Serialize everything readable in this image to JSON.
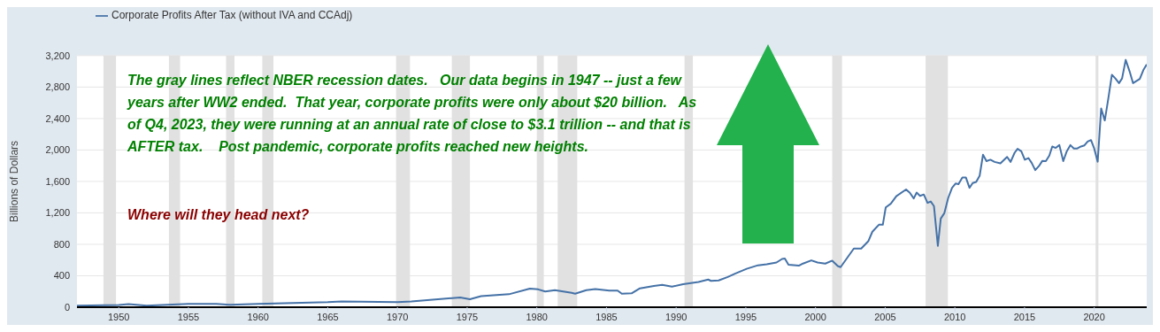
{
  "chart_data": {
    "type": "line",
    "ylabel": "Billions of Dollars",
    "annotations": [
      "The gray lines reflect NBER recession dates.   Our data begins in 1947 -- just a few years after WW2 ended.  That year, corporate profits were only about $20 billion.   As of Q4, 2023, they were running at an annual rate of close to $3.1 trillion -- and that is AFTER tax.    Post pandemic, corporate profits reached new heights.",
      "Where will they head next?"
    ],
    "series": [
      {
        "name": "Corporate Profits After Tax (without IVA and CCAdj)",
        "color": "#4572a7",
        "x": [
          1947,
          1950,
          1950.7,
          1952,
          1955,
          1957,
          1958,
          1960,
          1965,
          1966,
          1970,
          1971,
          1974.5,
          1975.2,
          1976,
          1978,
          1979.5,
          1980.1,
          1980.6,
          1981.3,
          1982.5,
          1982.75,
          1983.55,
          1984.2,
          1985.2,
          1985.8,
          1986.1,
          1986.8,
          1987.4,
          1988.4,
          1989,
          1989.7,
          1990.5,
          1991.6,
          1992.3,
          1992.5,
          1993.05,
          1993.7,
          1994.26,
          1995.06,
          1995.87,
          1996.5,
          1997.2,
          1997.6,
          1997.8,
          1998.06,
          1998.8,
          1999.1,
          1999.7,
          2000.15,
          2000.7,
          2001.2,
          2001.6,
          2001.8,
          2002.75,
          2003.28,
          2003.8,
          2004.08,
          2004.55,
          2004.83,
          2005.04,
          2005.4,
          2005.8,
          2006.5,
          2006.77,
          2007.05,
          2007.26,
          2007.5,
          2007.77,
          2008.04,
          2008.27,
          2008.5,
          2008.78,
          2008.99,
          2009.25,
          2009.52,
          2009.8,
          2010.05,
          2010.26,
          2010.54,
          2010.79,
          2011.05,
          2011.28,
          2011.53,
          2011.78,
          2012.02,
          2012.27,
          2012.55,
          2012.85,
          2013.27,
          2013.75,
          2014,
          2014.29,
          2014.5,
          2014.77,
          2015.02,
          2015.28,
          2015.51,
          2015.77,
          2016.03,
          2016.28,
          2016.53,
          2016.78,
          2016.99,
          2017.24,
          2017.5,
          2017.78,
          2018.03,
          2018.29,
          2018.54,
          2018.79,
          2019.05,
          2019.3,
          2019.53,
          2019.77,
          2020,
          2020.25,
          2020.5,
          2020.76,
          2021.02,
          2021.27,
          2021.52,
          2021.78,
          2022,
          2022.26,
          2022.54,
          2022.79,
          2023.02,
          2023.27,
          2023.53,
          2023.77
        ],
        "values": [
          20,
          29,
          40,
          20,
          43,
          43,
          30,
          43,
          64,
          74,
          64,
          74,
          124,
          102,
          141,
          165,
          236,
          227,
          200,
          218,
          182,
          171,
          217,
          230,
          212,
          212,
          171,
          176,
          240,
          271,
          285,
          262,
          293,
          321,
          352,
          335,
          340,
          384,
          429,
          488,
          533,
          547,
          569,
          614,
          619,
          541,
          528,
          555,
          596,
          569,
          555,
          592,
          523,
          510,
          746,
          746,
          842,
          960,
          1049,
          1049,
          1270,
          1316,
          1412,
          1498,
          1455,
          1384,
          1458,
          1416,
          1434,
          1327,
          1345,
          1287,
          781,
          1127,
          1198,
          1388,
          1519,
          1573,
          1566,
          1651,
          1651,
          1519,
          1580,
          1594,
          1672,
          1940,
          1858,
          1876,
          1848,
          1830,
          1912,
          1848,
          1965,
          2015,
          1983,
          1876,
          1897,
          1837,
          1744,
          1794,
          1862,
          1858,
          1929,
          2044,
          2026,
          2062,
          1858,
          1983,
          2062,
          2019,
          2019,
          2044,
          2058,
          2108,
          2126,
          2019,
          1851,
          2528,
          2375,
          2661,
          2957,
          2910,
          2850,
          2910,
          3146,
          3000,
          2850,
          2875,
          2903,
          3017,
          3089
        ]
      }
    ],
    "bands": [
      {
        "axis": "x",
        "from": 1948.9,
        "to": 1949.8,
        "color": "#e1e1e1"
      },
      {
        "axis": "x",
        "from": 1953.6,
        "to": 1954.4,
        "color": "#e1e1e1"
      },
      {
        "axis": "x",
        "from": 1957.7,
        "to": 1958.3,
        "color": "#e1e1e1"
      },
      {
        "axis": "x",
        "from": 1960.3,
        "to": 1961.1,
        "color": "#e1e1e1"
      },
      {
        "axis": "x",
        "from": 1969.9,
        "to": 1970.9,
        "color": "#e1e1e1"
      },
      {
        "axis": "x",
        "from": 1973.9,
        "to": 1975.2,
        "color": "#e1e1e1"
      },
      {
        "axis": "x",
        "from": 1980,
        "to": 1980.5,
        "color": "#e1e1e1"
      },
      {
        "axis": "x",
        "from": 1981.5,
        "to": 1982.9,
        "color": "#e1e1e1"
      },
      {
        "axis": "x",
        "from": 1990.6,
        "to": 1991.2,
        "color": "#e1e1e1"
      },
      {
        "axis": "x",
        "from": 2001.2,
        "to": 2001.9,
        "color": "#e1e1e1"
      },
      {
        "axis": "x",
        "from": 2007.9,
        "to": 2009.5,
        "color": "#e1e1e1"
      },
      {
        "axis": "x",
        "from": 2020.1,
        "to": 2020.3,
        "color": "#e1e1e1"
      }
    ],
    "xlim": [
      1947,
      2023.77
    ],
    "xticks": [
      1950,
      1955,
      1960,
      1965,
      1970,
      1975,
      1980,
      1985,
      1990,
      1995,
      2000,
      2005,
      2010,
      2015,
      2020
    ],
    "ylim": [
      0,
      3200
    ],
    "yticks": [
      0,
      400,
      800,
      {
        "value": 1200,
        "label": "1,200"
      },
      {
        "value": 1600,
        "label": "1,600"
      },
      {
        "value": 2000,
        "label": "2,000"
      },
      {
        "value": 2400,
        "label": "2,400"
      },
      {
        "value": 2800,
        "label": "2,800"
      },
      {
        "value": 3200,
        "label": "3,200"
      }
    ],
    "grid": "y",
    "legend": "top left",
    "marker": "none",
    "line_style": "solid"
  }
}
